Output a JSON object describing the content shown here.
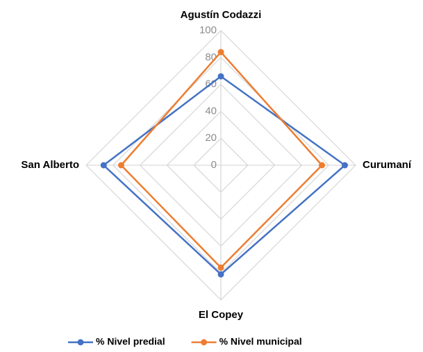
{
  "chart_data": {
    "type": "radar",
    "categories": [
      "Agustín Codazzi",
      "Curumaní",
      "El Copey",
      "San Alberto"
    ],
    "series": [
      {
        "name": "% Nivel predial",
        "color": "#4472c4",
        "values": [
          66,
          92,
          81,
          87
        ]
      },
      {
        "name": "% Nivel municipal",
        "color": "#ed7d31",
        "values": [
          84,
          75,
          76,
          74
        ]
      }
    ],
    "ylim": [
      0,
      100
    ],
    "yticks": [
      0,
      20,
      40,
      60,
      80,
      100
    ],
    "grid": true,
    "legend": "bottom"
  }
}
